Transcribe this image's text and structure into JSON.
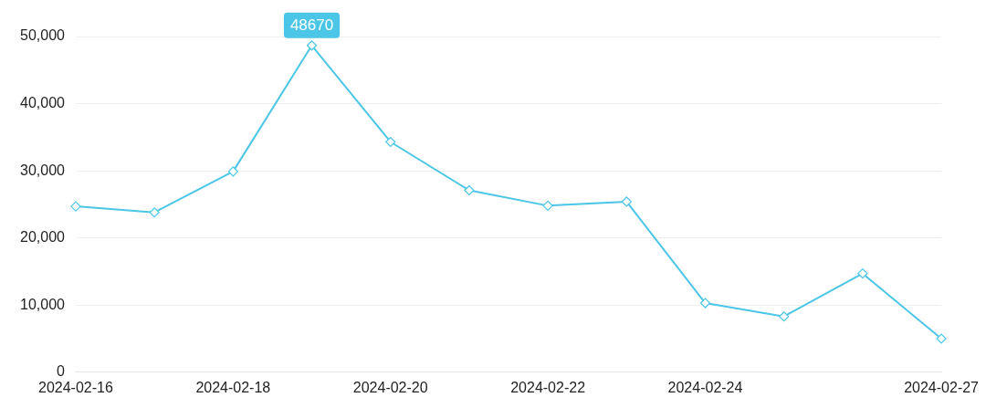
{
  "chart_data": {
    "type": "line",
    "categories": [
      "2024-02-16",
      null,
      "2024-02-18",
      null,
      "2024-02-20",
      null,
      "2024-02-22",
      null,
      "2024-02-24",
      null,
      null,
      "2024-02-27"
    ],
    "series": [
      {
        "color": "#4cc6e6",
        "values": [
          24700,
          23800,
          29900,
          48670,
          34300,
          27100,
          24800,
          25400,
          10300,
          8300,
          14700,
          5000
        ],
        "value_labels": [
          null,
          null,
          null,
          "48670",
          null,
          null,
          null,
          null,
          null,
          null,
          null,
          null
        ]
      }
    ],
    "ylim": [
      0,
      50000
    ],
    "yticks": [
      {
        "value": 0,
        "label": "0"
      },
      {
        "value": 10000,
        "label": "10,000"
      },
      {
        "value": 20000,
        "label": "20,000"
      },
      {
        "value": 30000,
        "label": "30,000"
      },
      {
        "value": 40000,
        "label": "40,000"
      },
      {
        "value": 50000,
        "label": "50,000"
      }
    ],
    "grid": "y",
    "marker": "diamond",
    "line_style": "solid",
    "legend": false
  }
}
